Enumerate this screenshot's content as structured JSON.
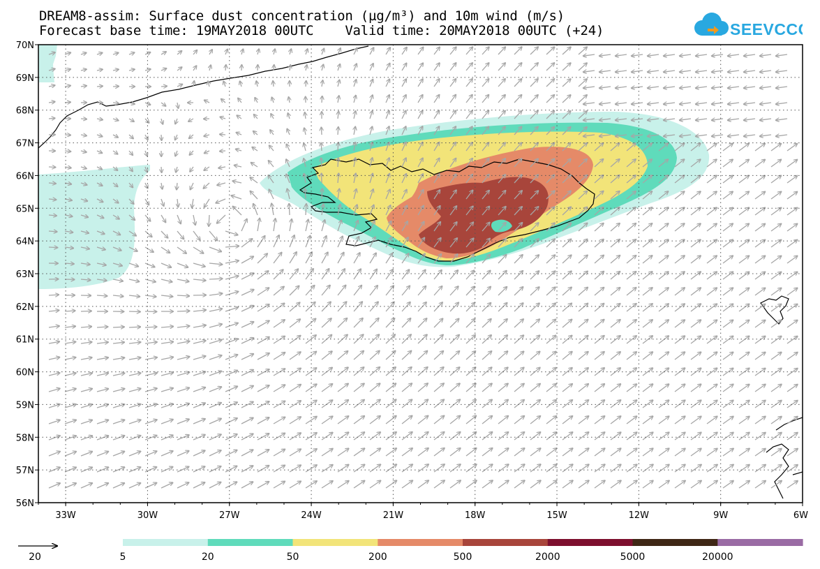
{
  "header": {
    "title_line1": "DREAM8-assim: Surface dust concentration (µg/m³) and 10m wind (m/s)",
    "title_line2": "Forecast base time: 19MAY2018 00UTC    Valid time: 20MAY2018 00UTC (+24)",
    "logo_text": "SEEVCCC"
  },
  "map": {
    "lat_labels": [
      "70N",
      "69N",
      "68N",
      "67N",
      "66N",
      "65N",
      "64N",
      "63N",
      "62N",
      "61N",
      "60N",
      "59N",
      "58N",
      "57N",
      "56N"
    ],
    "lon_labels": [
      "33W",
      "30W",
      "27W",
      "24W",
      "21W",
      "18W",
      "15W",
      "12W",
      "9W",
      "6W"
    ],
    "lat_range": [
      56,
      70
    ],
    "lon_range": [
      -34,
      -6
    ],
    "grid": "dotted",
    "wind_field": "cyclonic circulation centred near 64N 26W; southwesterly flow south and east of Iceland"
  },
  "legend": {
    "wind_reference_label": "20",
    "levels": [
      {
        "label": "5",
        "color": "#c8f1ea"
      },
      {
        "label": "20",
        "color": "#5fdbbb"
      },
      {
        "label": "50",
        "color": "#f2e479"
      },
      {
        "label": "200",
        "color": "#e58a68"
      },
      {
        "label": "500",
        "color": "#a8453b"
      },
      {
        "label": "2000",
        "color": "#7d0f2e"
      },
      {
        "label": "5000",
        "color": "#3f2715"
      },
      {
        "label": "20000",
        "color": "#9a6ba4"
      }
    ]
  },
  "colors": {
    "c5": "#c8f1ea",
    "c20": "#5fdbbb",
    "c50": "#f2e479",
    "c200": "#e58a68",
    "c500": "#a8453b",
    "arrow": "#a6a6a6",
    "logo_blue": "#29a8e0",
    "logo_orange": "#f39a1b"
  }
}
